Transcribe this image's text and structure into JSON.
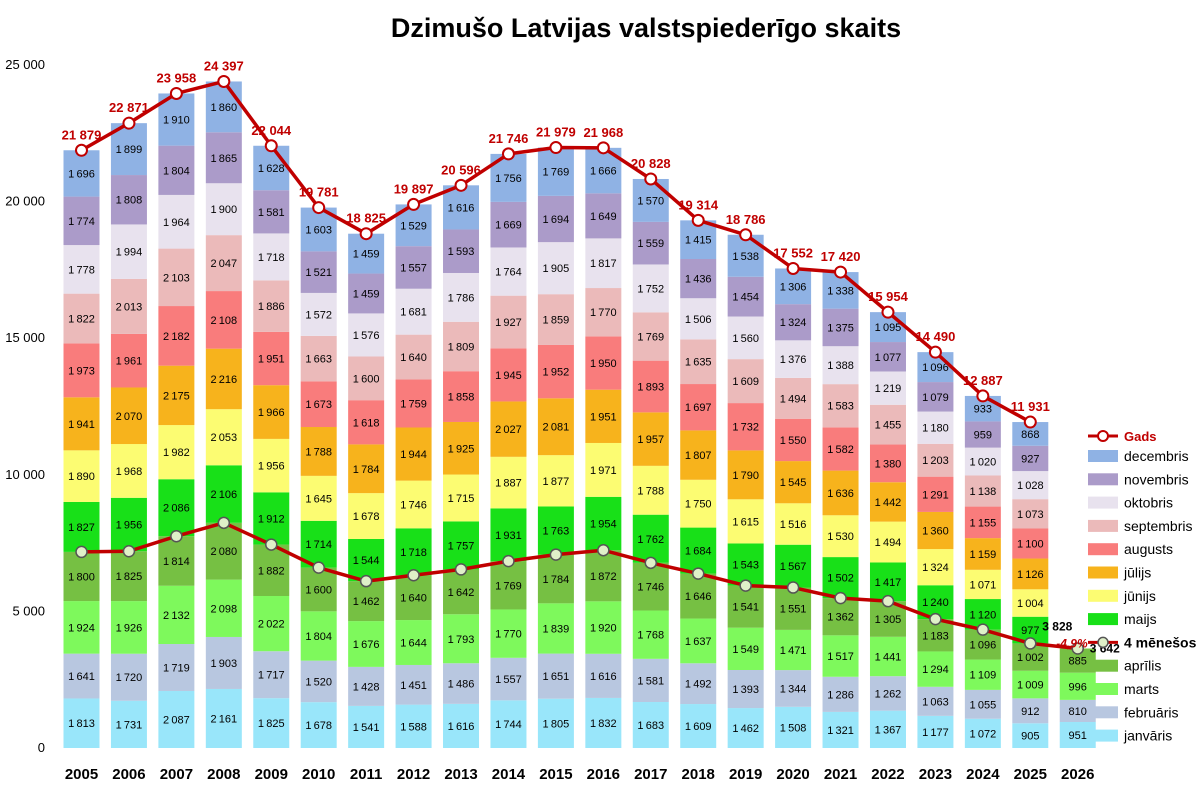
{
  "chart_data": {
    "type": "bar",
    "stacked": true,
    "title": "Dzimušo Latvijas valstspiederīgo skaits",
    "xlabel": "",
    "ylabel": "",
    "ylim": [
      0,
      25000
    ],
    "yticks": [
      0,
      5000,
      10000,
      15000,
      20000,
      25000
    ],
    "ytick_labels": [
      "0",
      "5 000",
      "10 000",
      "15 000",
      "20 000",
      "25 000"
    ],
    "grid": false,
    "legend_position": "right",
    "categories": [
      "2005",
      "2006",
      "2007",
      "2008",
      "2009",
      "2010",
      "2011",
      "2012",
      "2013",
      "2014",
      "2015",
      "2016",
      "2017",
      "2018",
      "2019",
      "2020",
      "2021",
      "2022",
      "2023",
      "2024",
      "2025",
      "2026"
    ],
    "series": [
      {
        "name": "janvāris",
        "color": "#99e6fa",
        "values": [
          1813,
          1731,
          2087,
          2161,
          1825,
          1678,
          1541,
          1588,
          1616,
          1744,
          1805,
          1832,
          1683,
          1609,
          1462,
          1508,
          1321,
          1367,
          1177,
          1072,
          905,
          951
        ]
      },
      {
        "name": "februāris",
        "color": "#b8c7e0",
        "values": [
          1641,
          1720,
          1719,
          1903,
          1717,
          1520,
          1428,
          1451,
          1486,
          1557,
          1651,
          1616,
          1581,
          1492,
          1393,
          1344,
          1286,
          1262,
          1063,
          1055,
          912,
          810
        ]
      },
      {
        "name": "marts",
        "color": "#7ef95c",
        "values": [
          1924,
          1926,
          2132,
          2098,
          2022,
          1804,
          1676,
          1644,
          1793,
          1770,
          1839,
          1920,
          1768,
          1637,
          1549,
          1471,
          1517,
          1441,
          1294,
          1109,
          1009,
          996
        ]
      },
      {
        "name": "aprīlis",
        "color": "#76c043",
        "values": [
          1800,
          1825,
          1814,
          2080,
          1882,
          1600,
          1462,
          1640,
          1642,
          1769,
          1784,
          1872,
          1746,
          1646,
          1541,
          1551,
          1362,
          1305,
          1183,
          1096,
          1002,
          885
        ]
      },
      {
        "name": "maijs",
        "color": "#18e018",
        "values": [
          1827,
          1956,
          2086,
          2106,
          1912,
          1714,
          1544,
          1718,
          1757,
          1931,
          1763,
          1954,
          1762,
          1684,
          1543,
          1567,
          1502,
          1417,
          1240,
          1120,
          977,
          null
        ]
      },
      {
        "name": "jūnijs",
        "color": "#fcfc72",
        "values": [
          1890,
          1968,
          1982,
          2053,
          1956,
          1645,
          1678,
          1746,
          1715,
          1887,
          1877,
          1971,
          1788,
          1750,
          1615,
          1516,
          1530,
          1494,
          1324,
          1071,
          1004,
          null
        ]
      },
      {
        "name": "jūlijs",
        "color": "#f7b31c",
        "values": [
          1941,
          2070,
          2175,
          2216,
          1966,
          1788,
          1784,
          1944,
          1925,
          2027,
          2081,
          1951,
          1957,
          1807,
          1790,
          1545,
          1636,
          1442,
          1360,
          1159,
          1126,
          null
        ]
      },
      {
        "name": "augusts",
        "color": "#f97c7c",
        "values": [
          1973,
          1961,
          2182,
          2108,
          1951,
          1673,
          1618,
          1759,
          1858,
          1945,
          1952,
          1950,
          1893,
          1697,
          1732,
          1550,
          1582,
          1380,
          1291,
          1155,
          1100,
          null
        ]
      },
      {
        "name": "septembris",
        "color": "#ebbaba",
        "values": [
          1822,
          2013,
          2103,
          2047,
          1886,
          1663,
          1600,
          1640,
          1809,
          1927,
          1859,
          1770,
          1769,
          1635,
          1609,
          1494,
          1583,
          1455,
          1203,
          1138,
          1073,
          null
        ]
      },
      {
        "name": "oktobris",
        "color": "#e8e2ee",
        "values": [
          1778,
          1994,
          1964,
          1900,
          1718,
          1572,
          1576,
          1681,
          1786,
          1764,
          1905,
          1817,
          1752,
          1506,
          1560,
          1376,
          1388,
          1219,
          1180,
          1020,
          1028,
          null
        ]
      },
      {
        "name": "novembris",
        "color": "#ab9bc9",
        "values": [
          1774,
          1808,
          1804,
          1865,
          1581,
          1521,
          1459,
          1557,
          1593,
          1669,
          1694,
          1649,
          1559,
          1436,
          1454,
          1324,
          1375,
          1077,
          1079,
          959,
          927,
          null
        ]
      },
      {
        "name": "decembris",
        "color": "#8fb2e4",
        "values": [
          1696,
          1899,
          1910,
          1860,
          1628,
          1603,
          1459,
          1529,
          1616,
          1756,
          1769,
          1666,
          1570,
          1415,
          1538,
          1306,
          1338,
          1095,
          1096,
          933,
          868,
          null
        ]
      }
    ],
    "lines": [
      {
        "name": "Gads",
        "color": "#c00000",
        "values": [
          21879,
          22871,
          23958,
          24397,
          22044,
          19781,
          18825,
          19897,
          20596,
          21746,
          21979,
          21968,
          20828,
          19314,
          18786,
          17552,
          17420,
          15954,
          14490,
          12887,
          11931,
          null
        ]
      },
      {
        "name": "4 mēnešos",
        "color": "#c00000",
        "values": [
          7178,
          7202,
          7752,
          8242,
          7446,
          6602,
          6107,
          6323,
          6537,
          6840,
          7079,
          7240,
          6778,
          6384,
          5945,
          5874,
          5486,
          5375,
          4717,
          4332,
          3828,
          3642
        ]
      }
    ],
    "labels": {
      "annual_totals": [
        "21 879",
        "22 871",
        "23 958",
        "24 397",
        "22 044",
        "19 781",
        "18 825",
        "19 897",
        "20 596",
        "21 746",
        "21 979",
        "21 968",
        "20 828",
        "19 314",
        "18 786",
        "17 552",
        "17 420",
        "15 954",
        "14 490",
        "12 887",
        "11 931"
      ],
      "four_month_2025": "3 828",
      "four_month_2026": "3 642",
      "change": "-4,9%"
    }
  }
}
